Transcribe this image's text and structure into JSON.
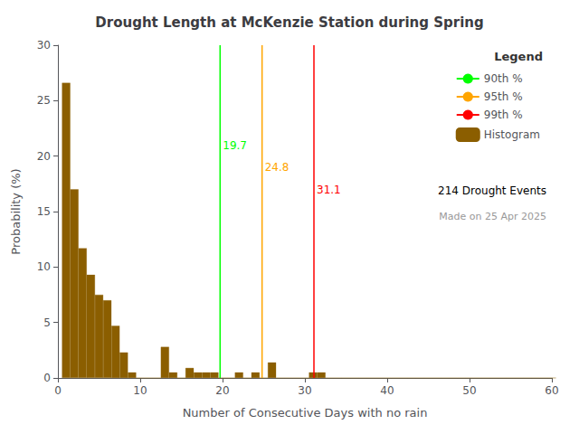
{
  "chart_data": {
    "type": "bar",
    "title": "Drought Length at McKenzie Station during Spring",
    "x_label": "Number of Consecutive Days with no rain",
    "y_label": "Probability (%)",
    "x": [
      1,
      2,
      3,
      4,
      5,
      6,
      7,
      8,
      9,
      10,
      11,
      12,
      13,
      14,
      15,
      16,
      17,
      18,
      19,
      20,
      21,
      22,
      23,
      24,
      25,
      26,
      27,
      28,
      29,
      30,
      31,
      32,
      33,
      34,
      35,
      36,
      37,
      38,
      39,
      40,
      41,
      42,
      43,
      44,
      45,
      46,
      47,
      48,
      49,
      50,
      51,
      52,
      53,
      54,
      55,
      56,
      57,
      58,
      59,
      60
    ],
    "series": [
      {
        "name": "Histogram",
        "type": "bar",
        "color": "#8B5E00",
        "values": [
          26.6,
          17.0,
          11.7,
          9.3,
          7.5,
          7.0,
          4.7,
          2.3,
          0.5,
          0.0,
          0.0,
          0.0,
          2.8,
          0.5,
          0.0,
          0.9,
          0.5,
          0.5,
          0.5,
          0.0,
          0.0,
          0.5,
          0.0,
          0.5,
          0.0,
          1.4,
          0.0,
          0.0,
          0.0,
          0.0,
          0.5,
          0.5,
          0.0,
          0.0,
          0.0,
          0.0,
          0.0,
          0.0,
          0.0,
          0.0,
          0.0,
          0.0,
          0.0,
          0.0,
          0.0,
          0.0,
          0.0,
          0.0,
          0.0,
          0.0,
          0.0,
          0.0,
          0.0,
          0.0,
          0.0,
          0.0,
          0.0,
          0.0,
          0.0,
          0.0
        ]
      }
    ],
    "vlines": [
      {
        "name": "90th %",
        "x": 19.7,
        "color": "#00ff00",
        "label": "19.7",
        "label_y": 20.5
      },
      {
        "name": "95th %",
        "x": 24.8,
        "color": "#ffa500",
        "label": "24.8",
        "label_y": 18.5
      },
      {
        "name": "99th %",
        "x": 31.1,
        "color": "#ff0000",
        "label": "31.1",
        "label_y": 16.5
      }
    ],
    "legend_title": "Legend",
    "annotations": [
      "214 Drought Events",
      "Made on 25 Apr 2025"
    ],
    "xlim": [
      0,
      60
    ],
    "ylim": [
      0,
      30
    ],
    "xticks": [
      0,
      10,
      20,
      30,
      40,
      50,
      60
    ],
    "yticks": [
      0,
      5,
      10,
      15,
      20,
      25,
      30
    ],
    "grid": false,
    "legend": "upper right"
  }
}
